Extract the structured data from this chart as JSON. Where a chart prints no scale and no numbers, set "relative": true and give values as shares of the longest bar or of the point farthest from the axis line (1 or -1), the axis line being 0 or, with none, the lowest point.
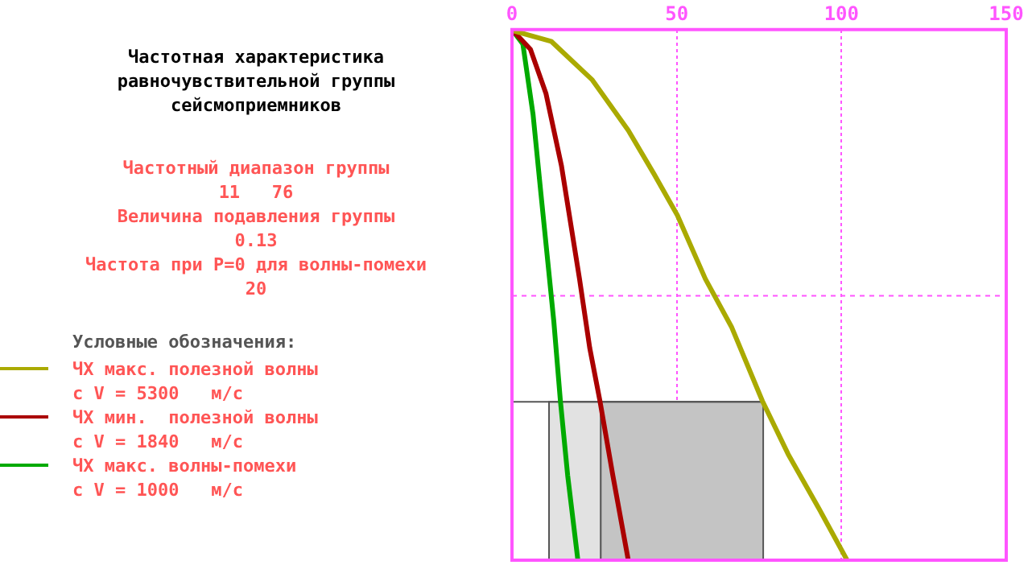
{
  "chart_data": {
    "type": "line",
    "title": "Частотная характеристика\nравночувствительной группы\nсейсмоприемников",
    "annotations": [
      "Частотный диапазон группы",
      "11   76",
      "Величина подавления группы",
      "0.13",
      "Частота при P=0 для волны-помехи",
      "20"
    ],
    "legend_title": "Условные обозначения:",
    "legend": "left",
    "relative": true,
    "xlim": [
      0,
      150
    ],
    "xticks": [
      0,
      50,
      100,
      150
    ],
    "grid": "x",
    "series": [
      {
        "name": "ЧХ макс. полезной волны\nс V = 5300   м/с",
        "color": "#aaaa00",
        "x": [
          0,
          0.9,
          11.9,
          24.4,
          35.3,
          43.1,
          50.2,
          58.7,
          66.6,
          76,
          83.8,
          93.1,
          101.7
        ],
        "values": [
          1,
          0.997,
          0.978,
          0.905,
          0.81,
          0.728,
          0.65,
          0.53,
          0.44,
          0.3,
          0.2,
          0.098,
          0
        ]
      },
      {
        "name": "ЧХ мин.  полезной волны\nс V = 1840   м/с",
        "color": "#aa0000",
        "x": [
          0,
          5.6,
          10.3,
          15,
          20.5,
          23.6,
          26.7,
          30.6,
          35.3
        ],
        "values": [
          1,
          0.963,
          0.88,
          0.744,
          0.53,
          0.4,
          0.3,
          0.16,
          0
        ]
      },
      {
        "name": "ЧХ макс. волны-помехи\nс V = 1000   м/с",
        "color": "#00aa00",
        "x": [
          0,
          3.3,
          6.4,
          8.8,
          11.4,
          12.7,
          14.7,
          16.9,
          20
        ],
        "values": [
          1,
          0.973,
          0.84,
          0.69,
          0.53,
          0.45,
          0.3,
          0.16,
          0
        ]
      }
    ],
    "ref_lines": [
      {
        "axis": "y",
        "value": 0.5,
        "color": "#ff55ff",
        "line_style": "dashed"
      },
      {
        "axis": "y",
        "value": 0.3,
        "color": "#555555",
        "line_style": "solid"
      }
    ],
    "bands": [
      {
        "axis": "x",
        "from": 11,
        "to": 26.7,
        "color": "#e2e2e2"
      },
      {
        "axis": "x",
        "from": 26.7,
        "to": 76,
        "color": "#c4c4c4"
      }
    ],
    "line_style": "solid",
    "marker": "none"
  }
}
